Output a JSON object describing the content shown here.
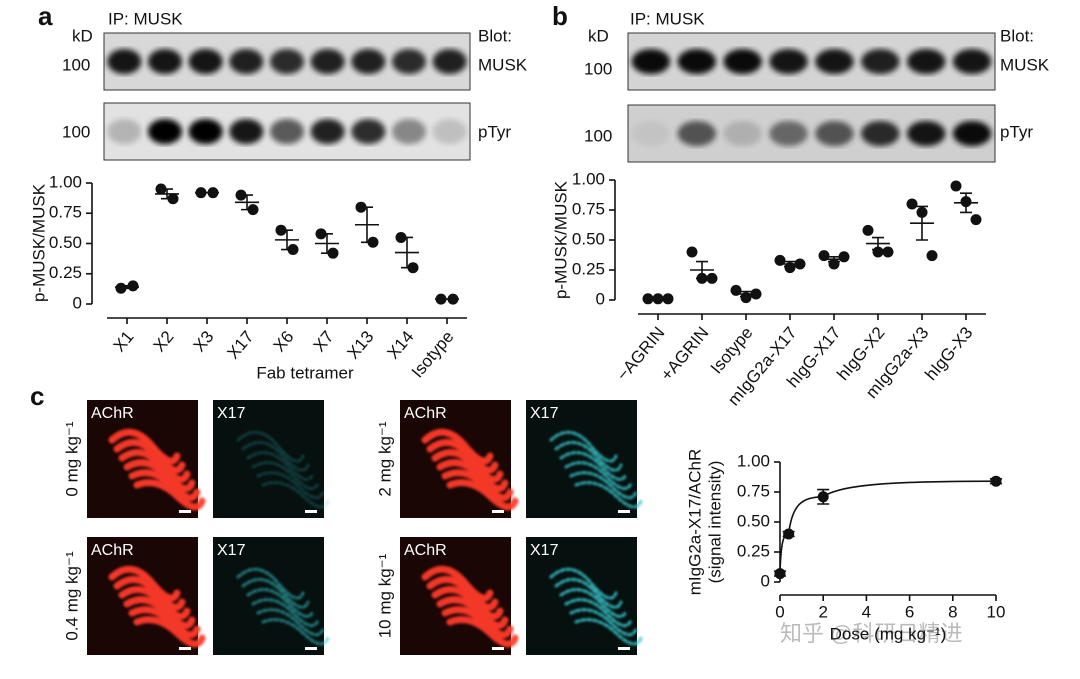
{
  "figure": {
    "panel_a": "a",
    "panel_b": "b",
    "panel_c": "c",
    "ip_a": "IP: MUSK",
    "kd_a": "kD",
    "blot_a": "Blot:",
    "mw_a1": "100",
    "mw_a2": "100",
    "musk_a": "MUSK",
    "ptyr_a": "pTyr",
    "ip_b": "IP: MUSK",
    "kd_b": "kD",
    "blot_b": "Blot:",
    "mw_b1": "100",
    "mw_b2": "100",
    "musk_b": "MUSK",
    "ptyr_b": "pTyr",
    "micrographs": [
      {
        "dose": "0 mg kg⁻¹",
        "left": "AChR",
        "right": "X17"
      },
      {
        "dose": "0.4 mg kg⁻¹",
        "left": "AChR",
        "right": "X17"
      },
      {
        "dose": "2 mg kg⁻¹",
        "left": "AChR",
        "right": "X17"
      },
      {
        "dose": "10 mg kg⁻¹",
        "left": "AChR",
        "right": "X17"
      }
    ],
    "watermark": "知乎 @科研日精进"
  },
  "chart_data": [
    {
      "type": "dot",
      "ylabel": "p-MUSK/MUSK",
      "xlabel": "Fab tetramer",
      "categories": [
        "X1",
        "X2",
        "X3",
        "X17",
        "X6",
        "X7",
        "X13",
        "X14",
        "Isotype"
      ],
      "values": [
        0.14,
        0.91,
        0.92,
        0.84,
        0.53,
        0.5,
        0.655,
        0.425,
        0.04
      ],
      "errors": [
        0.01,
        0.04,
        0.0,
        0.06,
        0.08,
        0.08,
        0.145,
        0.125,
        0.0
      ],
      "points": [
        [
          0.13,
          0.15
        ],
        [
          0.95,
          0.87
        ],
        [
          0.92,
          0.92
        ],
        [
          0.9,
          0.78
        ],
        [
          0.61,
          0.45
        ],
        [
          0.58,
          0.42
        ],
        [
          0.8,
          0.51
        ],
        [
          0.55,
          0.3
        ],
        [
          0.04,
          0.04
        ]
      ],
      "ylim": [
        0,
        1.0
      ],
      "yticks": [
        0,
        0.25,
        {
          "value": 0.5,
          "label": "0.50"
        },
        0.75,
        {
          "value": 1.0,
          "label": "1.00"
        }
      ]
    },
    {
      "type": "dot",
      "ylabel": "p-MUSK/MUSK",
      "categories": [
        "−AGRIN",
        "+AGRIN",
        "Isotype",
        "mIgG2a-X17",
        "hIgG-X17",
        "hIgG-X2",
        "mIgG2a-X3",
        "hIgG-X3"
      ],
      "values": [
        0.01,
        0.25,
        0.05,
        0.3,
        0.34,
        0.47,
        0.64,
        0.81
      ],
      "errors": [
        0.0,
        0.07,
        0.02,
        0.02,
        0.02,
        0.05,
        0.14,
        0.08
      ],
      "points": [
        [
          0.01,
          0.01,
          0.01
        ],
        [
          0.4,
          0.18,
          0.18
        ],
        [
          0.08,
          0.02,
          0.05
        ],
        [
          0.33,
          0.27,
          0.3
        ],
        [
          0.37,
          0.3,
          0.36
        ],
        [
          0.58,
          0.4,
          0.4
        ],
        [
          0.8,
          0.73,
          0.37
        ],
        [
          0.95,
          0.82,
          0.67
        ]
      ],
      "ylim": [
        0,
        1.0
      ],
      "yticks": [
        0,
        0.25,
        {
          "value": 0.5,
          "label": "0.50"
        },
        0.75,
        {
          "value": 1.0,
          "label": "1.00"
        }
      ]
    },
    {
      "type": "dose",
      "ylabel": "mIgG2a-X17/AChR",
      "ylabel2": "(signal intensity)",
      "xlabel": "Dose (mg kg⁻¹)",
      "x": [
        0,
        0.4,
        2,
        10
      ],
      "values": [
        0.07,
        0.4,
        0.71,
        0.84
      ],
      "errors": [
        0.02,
        0.02,
        0.06,
        0.02
      ],
      "xlim": [
        0,
        10
      ],
      "xticks": [
        0,
        2,
        4,
        6,
        8,
        10
      ],
      "ylim": [
        0,
        1.0
      ],
      "yticks": [
        0,
        0.25,
        {
          "value": 0.5,
          "label": "0.50"
        },
        0.75,
        {
          "value": 1.0,
          "label": "1.00"
        }
      ]
    }
  ]
}
